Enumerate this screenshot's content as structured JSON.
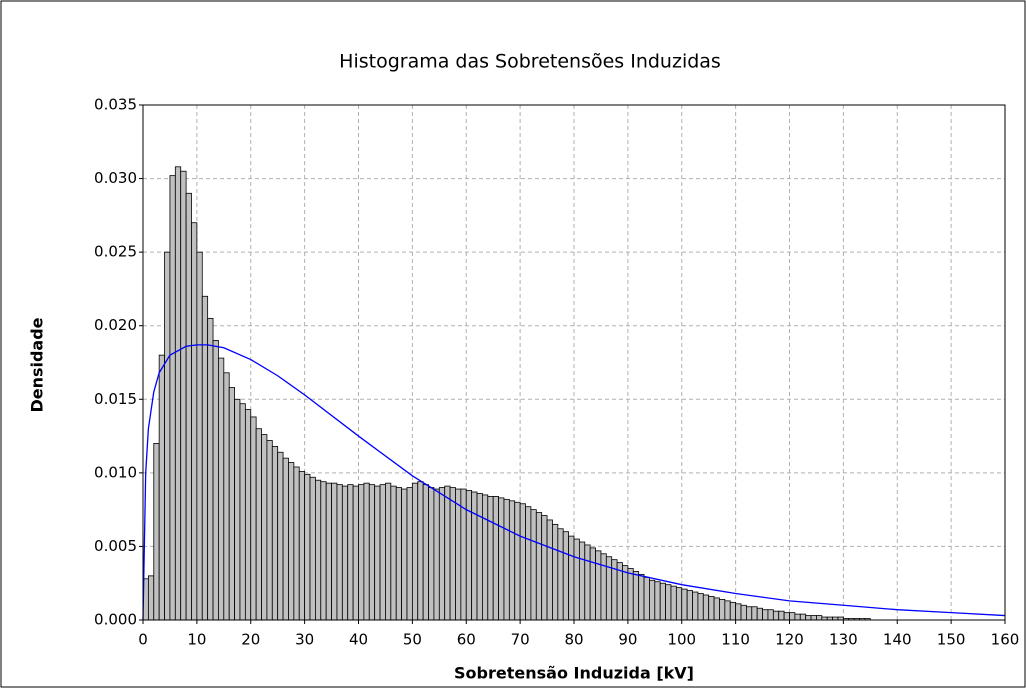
{
  "chart_data": {
    "type": "histogram",
    "title": "Histograma das Sobretensões Induzidas",
    "xlabel": "Sobretensão Induzida [kV]",
    "ylabel": "Densidade",
    "color": "#c0c0c0",
    "bins": [
      0,
      1,
      2,
      3,
      4,
      5,
      6,
      7,
      8,
      9,
      10,
      11,
      12,
      13,
      14,
      15,
      16,
      17,
      18,
      19,
      20,
      21,
      22,
      23,
      24,
      25,
      26,
      27,
      28,
      29,
      30,
      31,
      32,
      33,
      34,
      35,
      36,
      37,
      38,
      39,
      40,
      41,
      42,
      43,
      44,
      45,
      46,
      47,
      48,
      49,
      50,
      51,
      52,
      53,
      54,
      55,
      56,
      57,
      58,
      59,
      60,
      61,
      62,
      63,
      64,
      65,
      66,
      67,
      68,
      69,
      70,
      71,
      72,
      73,
      74,
      75,
      76,
      77,
      78,
      79,
      80,
      81,
      82,
      83,
      84,
      85,
      86,
      87,
      88,
      89,
      90,
      91,
      92,
      93,
      94,
      95,
      96,
      97,
      98,
      99,
      100,
      101,
      102,
      103,
      104,
      105,
      106,
      107,
      108,
      109,
      110,
      111,
      112,
      113,
      114,
      115,
      116,
      117,
      118,
      119,
      120,
      121,
      122,
      123,
      124,
      125,
      126,
      127,
      128,
      129,
      130,
      131,
      132,
      133,
      134,
      135
    ],
    "counts": [
      0.0028,
      0.003,
      0.012,
      0.018,
      0.025,
      0.0302,
      0.0308,
      0.0305,
      0.029,
      0.027,
      0.025,
      0.022,
      0.0205,
      0.019,
      0.0178,
      0.0168,
      0.0158,
      0.015,
      0.0147,
      0.0143,
      0.0138,
      0.013,
      0.0126,
      0.0122,
      0.0118,
      0.0114,
      0.011,
      0.0107,
      0.0104,
      0.0101,
      0.0099,
      0.0097,
      0.0095,
      0.0094,
      0.0093,
      0.0093,
      0.0092,
      0.0091,
      0.0092,
      0.0091,
      0.0092,
      0.0093,
      0.0092,
      0.0091,
      0.0092,
      0.0093,
      0.0091,
      0.009,
      0.0089,
      0.009,
      0.0093,
      0.0094,
      0.0092,
      0.009,
      0.0089,
      0.009,
      0.0091,
      0.009,
      0.0089,
      0.0089,
      0.0088,
      0.0087,
      0.0086,
      0.0085,
      0.0084,
      0.0084,
      0.0083,
      0.0082,
      0.0081,
      0.008,
      0.0079,
      0.0077,
      0.0075,
      0.0073,
      0.0071,
      0.0068,
      0.0065,
      0.0062,
      0.006,
      0.0057,
      0.0055,
      0.0053,
      0.0051,
      0.0049,
      0.0047,
      0.0045,
      0.0043,
      0.0041,
      0.0039,
      0.0037,
      0.0035,
      0.0033,
      0.0031,
      0.0029,
      0.0027,
      0.0026,
      0.0025,
      0.0024,
      0.0023,
      0.0022,
      0.0021,
      0.002,
      0.0019,
      0.0018,
      0.0017,
      0.0016,
      0.0015,
      0.0014,
      0.0013,
      0.0012,
      0.0011,
      0.001,
      0.0009,
      0.0009,
      0.0008,
      0.0007,
      0.0007,
      0.0006,
      0.0006,
      0.0005,
      0.0005,
      0.0004,
      0.0004,
      0.0003,
      0.0003,
      0.0003,
      0.0002,
      0.0002,
      0.0002,
      0.0002,
      0.0001,
      0.0001,
      0.0001,
      0.0001,
      0.0001
    ],
    "curve": {
      "color": "#0000ff",
      "x": [
        0,
        0.5,
        1,
        2,
        3,
        5,
        8,
        10,
        12,
        15,
        20,
        25,
        30,
        40,
        50,
        60,
        70,
        80,
        90,
        100,
        110,
        120,
        130,
        140,
        150,
        160
      ],
      "values": [
        0,
        0.01,
        0.013,
        0.0155,
        0.0168,
        0.018,
        0.0186,
        0.0187,
        0.0187,
        0.0185,
        0.0177,
        0.0166,
        0.0153,
        0.0125,
        0.0098,
        0.0075,
        0.0057,
        0.0043,
        0.0032,
        0.0024,
        0.0018,
        0.0013,
        0.001,
        0.0007,
        0.0005,
        0.0003
      ]
    },
    "xlim": [
      0,
      160
    ],
    "xticks": [
      0,
      10,
      20,
      30,
      40,
      50,
      60,
      70,
      80,
      90,
      100,
      110,
      120,
      130,
      140,
      150,
      160
    ],
    "ylim": [
      0,
      0.035
    ],
    "yticks": [
      {
        "value": 0,
        "label": "0.000"
      },
      0.005,
      {
        "value": 0.01,
        "label": "0.010"
      },
      0.015,
      {
        "value": 0.02,
        "label": "0.020"
      },
      0.025,
      {
        "value": 0.03,
        "label": "0.030"
      },
      0.035
    ],
    "grid": true
  }
}
